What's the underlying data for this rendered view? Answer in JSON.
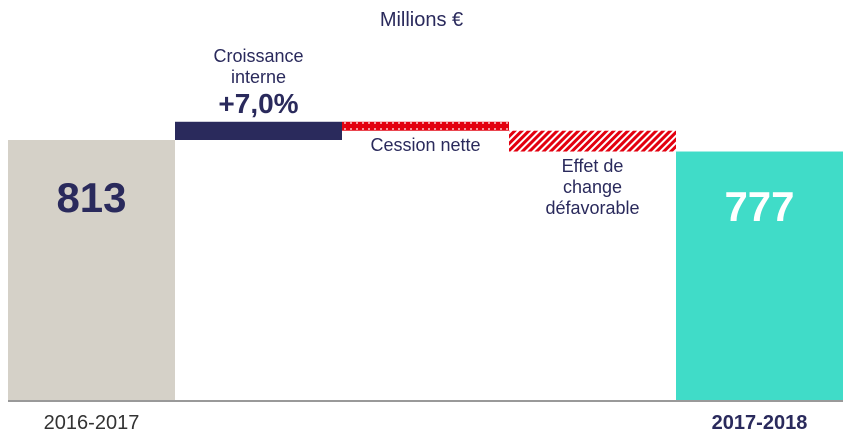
{
  "chart_data": {
    "type": "waterfall",
    "title": "Millions €",
    "categories": [
      "2016-2017",
      "Croissance interne",
      "Cession nette",
      "Effet de change défavorable",
      "2017-2018"
    ],
    "measure": [
      "total",
      "relative",
      "relative",
      "relative",
      "total"
    ],
    "values": [
      813,
      57,
      -28,
      -65,
      777
    ],
    "value_labels": [
      "813",
      null,
      null,
      null,
      "777"
    ],
    "growth_label": "+7,0%",
    "colors": [
      "#d5d1c8",
      "#2a2a5c",
      "#e3000f",
      "#e3000f",
      "#40dcc8"
    ],
    "patterns": [
      "solid",
      "solid",
      "dots",
      "hatch",
      "solid"
    ],
    "value_label_colors": [
      "#2a2a5c",
      null,
      null,
      null,
      "#ffffff"
    ],
    "ylim": [
      0,
      900
    ]
  }
}
